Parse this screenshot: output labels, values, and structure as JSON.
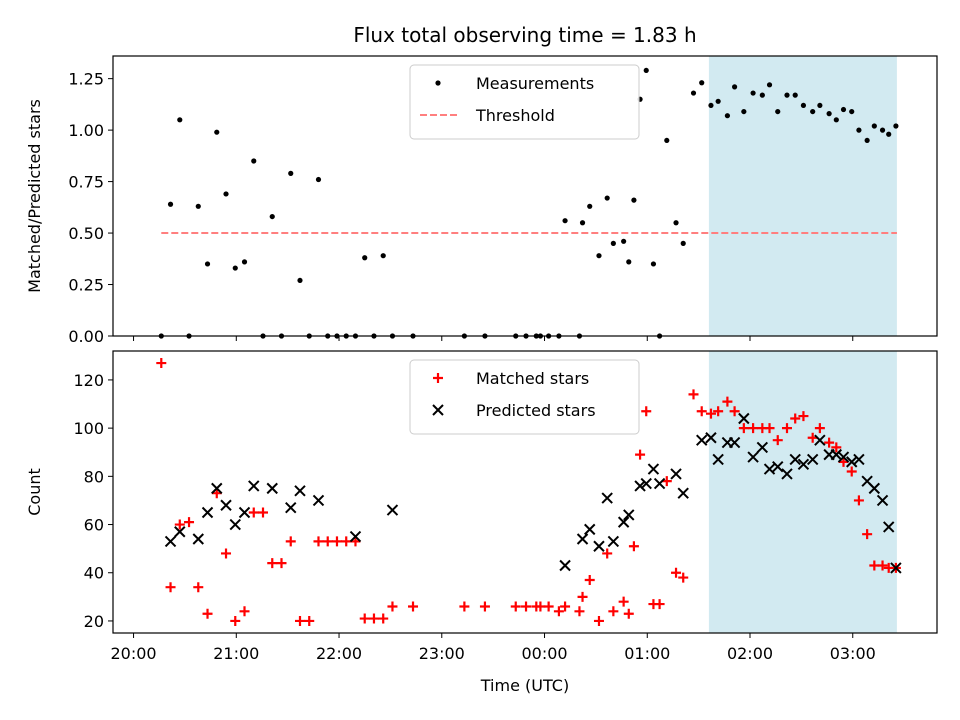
{
  "figure": {
    "title": "Flux total observing time = 1.83 h",
    "xlabel": "Time (UTC)",
    "x_tick_labels": [
      "20:00",
      "21:00",
      "22:00",
      "23:00",
      "00:00",
      "01:00",
      "02:00",
      "03:00"
    ],
    "x_ticks_hours": [
      0,
      1,
      2,
      3,
      4,
      5,
      6,
      7
    ],
    "xlim_hours": [
      -0.2,
      7.82
    ],
    "x_origin_time": "20:00",
    "shaded_region_hours": [
      5.6,
      7.43
    ],
    "shade_color": "#add8e6"
  },
  "chart_data": [
    {
      "type": "scatter",
      "ylabel": "Matched/Predicted stars",
      "ylim": [
        0,
        1.36
      ],
      "y_ticks": [
        0.0,
        0.25,
        0.5,
        0.75,
        1.0,
        1.25
      ],
      "y_tick_labels": [
        "0.00",
        "0.25",
        "0.50",
        "0.75",
        "1.00",
        "1.25"
      ],
      "legend_position": "upper center",
      "threshold": {
        "name": "Threshold",
        "y": 0.5,
        "x_range_hours": [
          0.27,
          7.43
        ],
        "color": "#ff7f7f"
      },
      "series": [
        {
          "name": "Measurements",
          "color": "#000000",
          "marker": "dot",
          "x_hours": [
            0.27,
            0.36,
            0.45,
            0.54,
            0.63,
            0.72,
            0.81,
            0.9,
            0.99,
            1.08,
            1.17,
            1.26,
            1.35,
            1.44,
            1.53,
            1.62,
            1.71,
            1.8,
            1.89,
            1.98,
            2.07,
            2.16,
            2.25,
            2.34,
            2.43,
            2.52,
            2.72,
            3.22,
            3.42,
            3.72,
            3.82,
            3.92,
            3.96,
            4.04,
            4.14,
            4.2,
            4.34,
            4.37,
            4.44,
            4.53,
            4.61,
            4.67,
            4.77,
            4.82,
            4.87,
            4.93,
            4.99,
            5.06,
            5.12,
            5.19,
            5.28,
            5.35,
            5.45,
            5.53,
            5.62,
            5.69,
            5.78,
            5.85,
            5.94,
            6.03,
            6.12,
            6.19,
            6.27,
            6.36,
            6.44,
            6.52,
            6.61,
            6.68,
            6.77,
            6.84,
            6.91,
            6.99,
            7.06,
            7.14,
            7.21,
            7.29,
            7.35,
            7.42
          ],
          "y": [
            0.0,
            0.64,
            1.05,
            0.0,
            0.63,
            0.35,
            0.99,
            0.69,
            0.33,
            0.36,
            0.85,
            0.0,
            0.58,
            0.0,
            0.79,
            0.27,
            0.0,
            0.76,
            0.0,
            0.0,
            0.0,
            0.0,
            0.38,
            0.0,
            0.39,
            0.0,
            0.0,
            0.0,
            0.0,
            0.0,
            0.0,
            0.0,
            0.0,
            0.0,
            0.0,
            0.56,
            0.0,
            0.55,
            0.63,
            0.39,
            0.67,
            0.45,
            0.46,
            0.36,
            0.66,
            1.15,
            1.29,
            0.35,
            0.0,
            0.95,
            0.55,
            0.45,
            1.18,
            1.23,
            1.12,
            1.14,
            1.07,
            1.21,
            1.09,
            1.18,
            1.17,
            1.22,
            1.09,
            1.17,
            1.17,
            1.12,
            1.09,
            1.12,
            1.08,
            1.05,
            1.1,
            1.09,
            1.0,
            0.95,
            1.02,
            1.0,
            0.98,
            1.02
          ]
        }
      ]
    },
    {
      "type": "scatter",
      "ylabel": "Count",
      "ylim": [
        15,
        132
      ],
      "y_ticks": [
        20,
        40,
        60,
        80,
        100,
        120
      ],
      "y_tick_labels": [
        "20",
        "40",
        "60",
        "80",
        "100",
        "120"
      ],
      "legend_position": "upper center",
      "series": [
        {
          "name": "Matched stars",
          "color": "#ff0000",
          "marker": "plus",
          "x_hours": [
            0.27,
            0.36,
            0.45,
            0.54,
            0.63,
            0.72,
            0.81,
            0.9,
            0.99,
            1.08,
            1.17,
            1.26,
            1.35,
            1.44,
            1.53,
            1.62,
            1.71,
            1.8,
            1.89,
            1.98,
            2.07,
            2.16,
            2.25,
            2.34,
            2.43,
            2.52,
            2.72,
            3.22,
            3.42,
            3.72,
            3.82,
            3.92,
            3.96,
            4.04,
            4.14,
            4.2,
            4.34,
            4.37,
            4.44,
            4.53,
            4.61,
            4.67,
            4.77,
            4.82,
            4.87,
            4.93,
            4.99,
            5.06,
            5.12,
            5.19,
            5.28,
            5.35,
            5.45,
            5.53,
            5.62,
            5.69,
            5.78,
            5.85,
            5.94,
            6.03,
            6.12,
            6.19,
            6.27,
            6.36,
            6.44,
            6.52,
            6.61,
            6.68,
            6.77,
            6.84,
            6.91,
            6.99,
            7.06,
            7.14,
            7.21,
            7.29,
            7.35,
            7.42
          ],
          "y": [
            127,
            34,
            60,
            61,
            34,
            23,
            73,
            48,
            20,
            24,
            65,
            65,
            44,
            44,
            53,
            20,
            20,
            53,
            53,
            53,
            53,
            53,
            21,
            21,
            21,
            26,
            26,
            26,
            26,
            26,
            26,
            26,
            26,
            26,
            24,
            26,
            24,
            30,
            37,
            20,
            48,
            24,
            28,
            23,
            51,
            89,
            107,
            27,
            27,
            78,
            40,
            38,
            114,
            107,
            106,
            107,
            111,
            107,
            100,
            100,
            100,
            100,
            95,
            100,
            104,
            105,
            96,
            100,
            94,
            92,
            86,
            82,
            70,
            56,
            43,
            43,
            42,
            42
          ]
        },
        {
          "name": "Predicted stars",
          "color": "#000000",
          "marker": "x",
          "x_hours": [
            0.36,
            0.45,
            0.63,
            0.72,
            0.81,
            0.9,
            0.99,
            1.08,
            1.17,
            1.35,
            1.53,
            1.62,
            1.8,
            2.16,
            2.52,
            4.2,
            4.37,
            4.44,
            4.53,
            4.61,
            4.67,
            4.77,
            4.82,
            4.93,
            4.99,
            5.06,
            5.12,
            5.28,
            5.35,
            5.53,
            5.62,
            5.69,
            5.78,
            5.85,
            5.94,
            6.03,
            6.12,
            6.19,
            6.27,
            6.36,
            6.44,
            6.52,
            6.61,
            6.68,
            6.77,
            6.84,
            6.91,
            6.99,
            7.06,
            7.14,
            7.21,
            7.29,
            7.35,
            7.42
          ],
          "y": [
            53,
            57,
            54,
            65,
            75,
            68,
            60,
            65,
            76,
            75,
            67,
            74,
            70,
            55,
            66,
            43,
            54,
            58,
            51,
            71,
            53,
            61,
            64,
            76,
            77,
            83,
            77,
            81,
            73,
            95,
            96,
            87,
            94,
            94,
            104,
            88,
            92,
            83,
            84,
            81,
            87,
            85,
            87,
            95,
            89,
            89,
            88,
            86,
            87,
            78,
            75,
            70,
            59,
            42
          ]
        }
      ]
    }
  ]
}
